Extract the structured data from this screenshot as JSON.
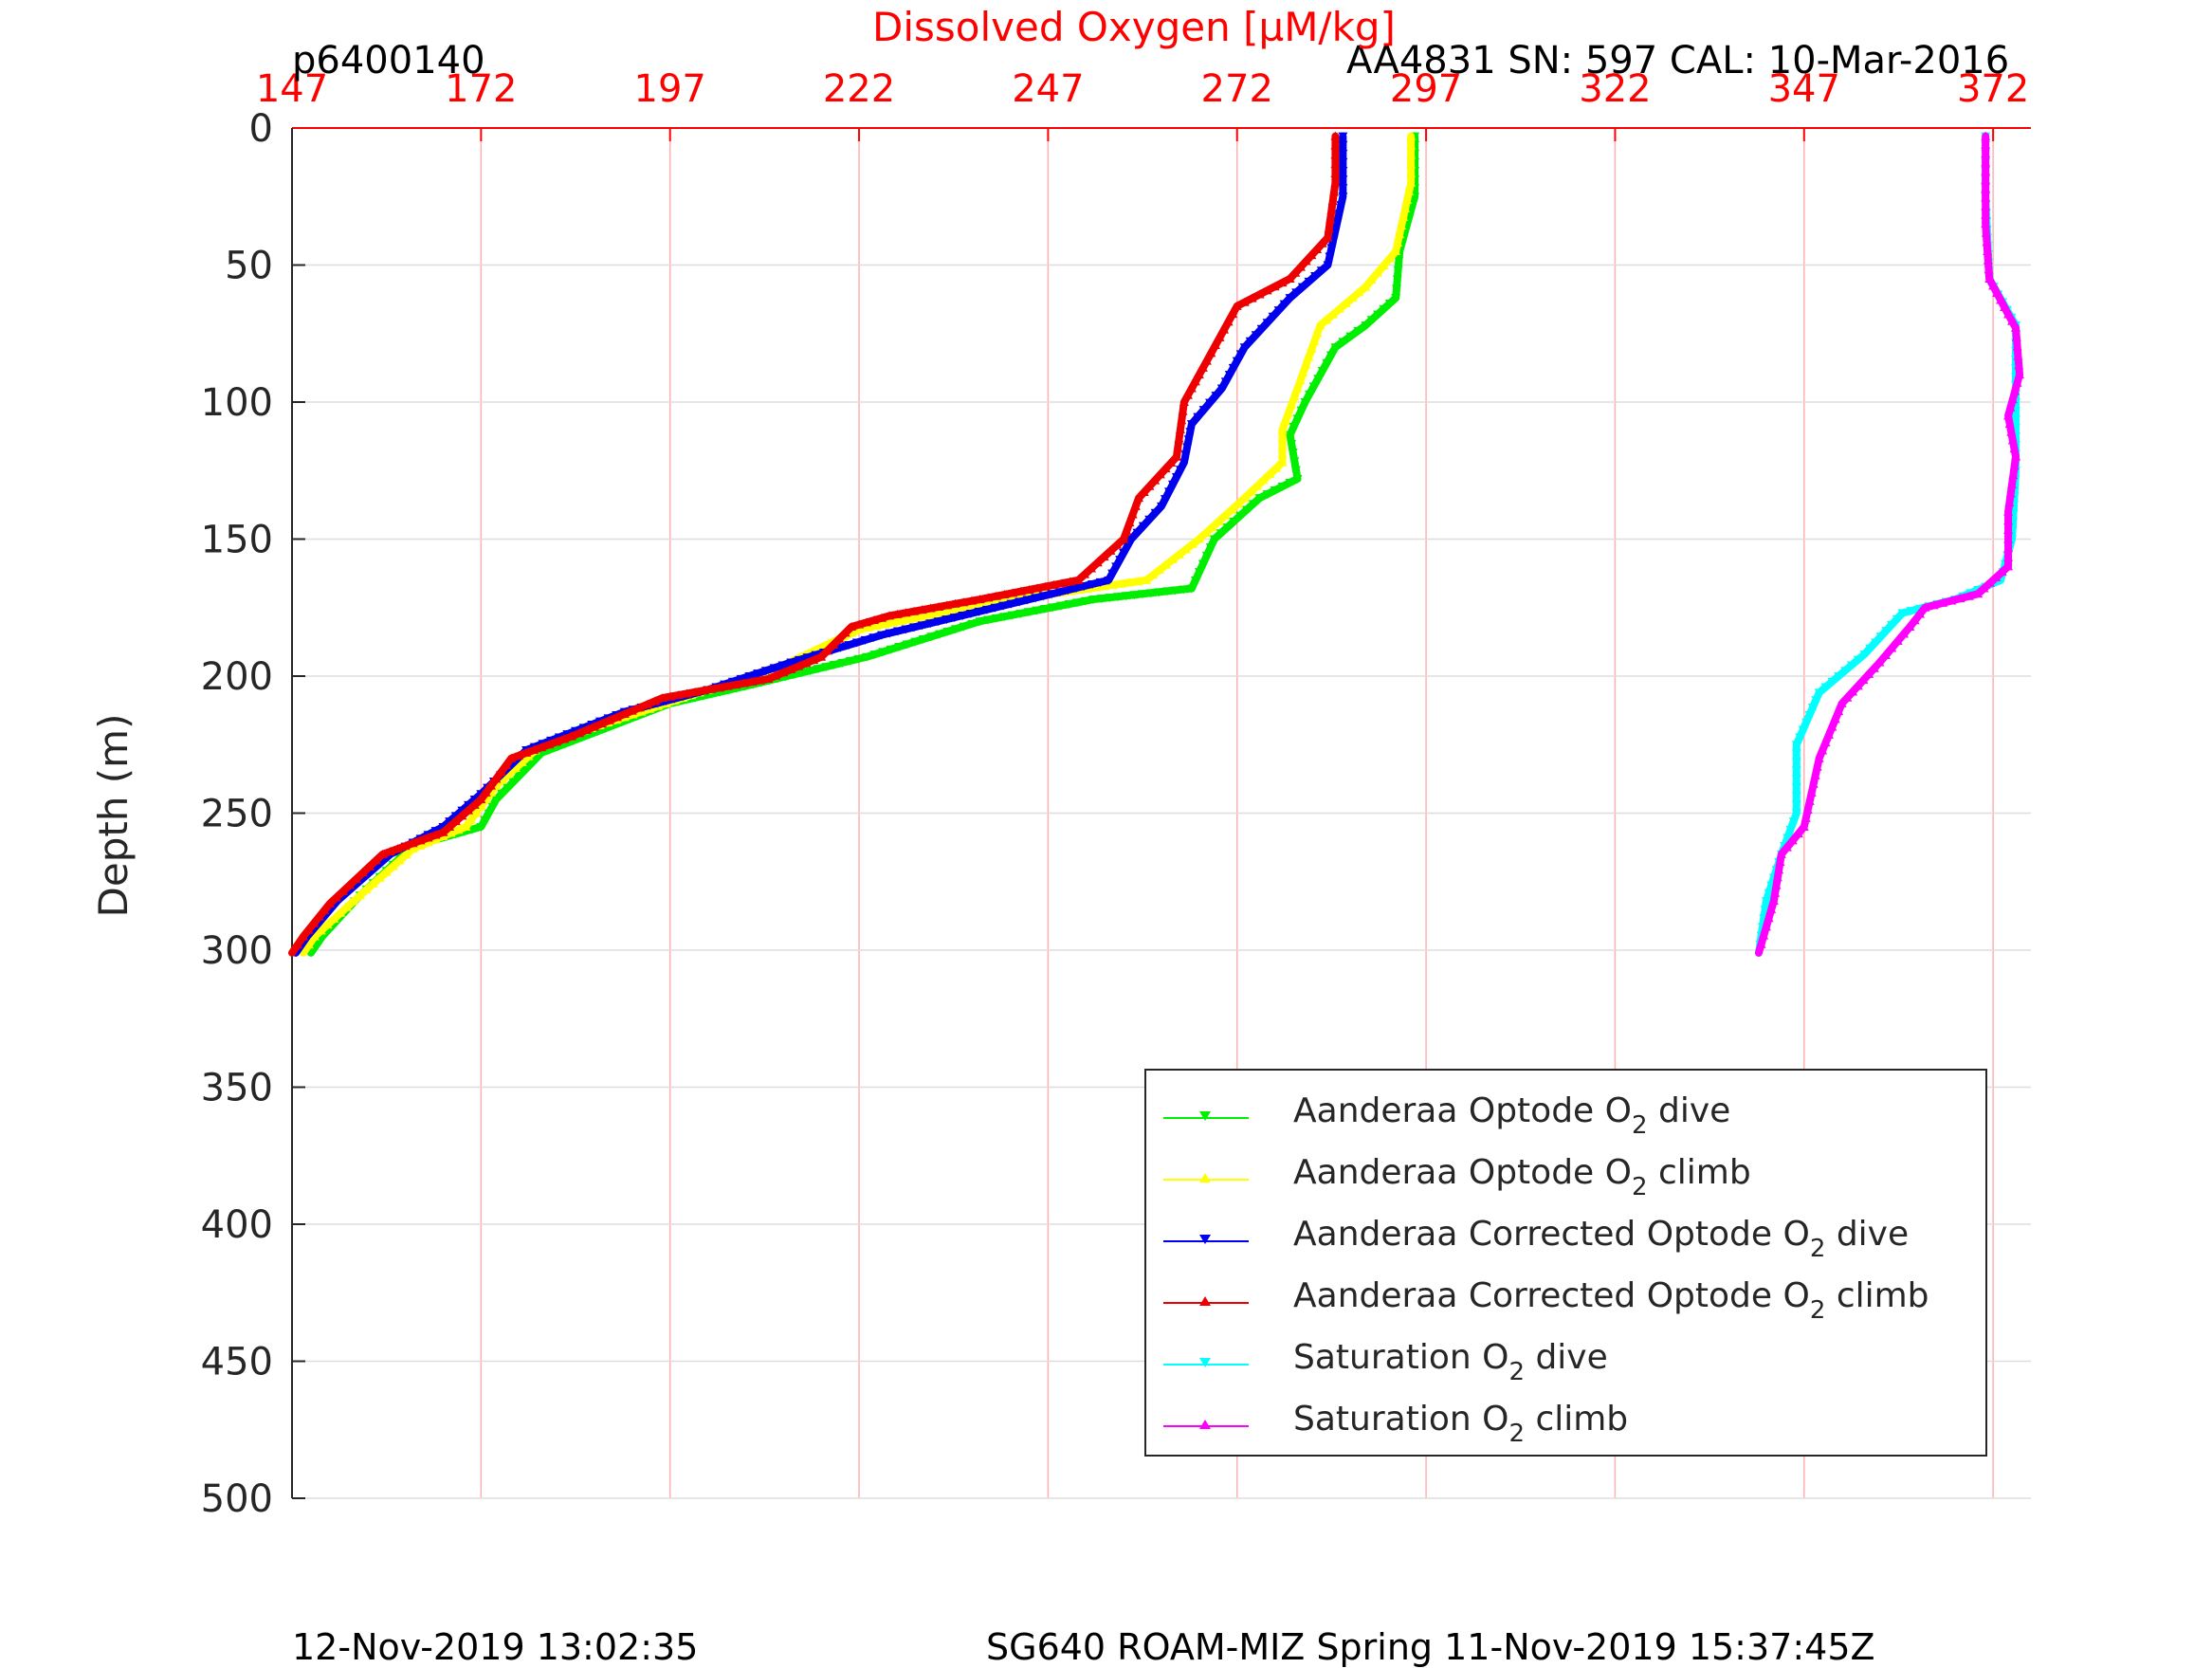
{
  "header": {
    "profile_id": "p6400140",
    "sensor_info": "AA4831   SN: 597   CAL: 10-Mar-2016"
  },
  "footer": {
    "left": "12-Nov-2019 13:02:35",
    "right": "SG640 ROAM-MIZ Spring 11-Nov-2019 15:37:45Z"
  },
  "chart_data": {
    "type": "line",
    "xlabel": "Dissolved Oxygen [µM/kg]",
    "ylabel": "Depth (m)",
    "xlim": [
      147,
      377
    ],
    "ylim": [
      500,
      0
    ],
    "x_ticks": [
      "147",
      "172",
      "197",
      "222",
      "247",
      "272",
      "297",
      "322",
      "347",
      "372"
    ],
    "y_ticks": [
      "0",
      "50",
      "100",
      "150",
      "200",
      "250",
      "300",
      "350",
      "400",
      "450",
      "500"
    ],
    "x_grid": true,
    "y_grid": true,
    "axis_color_x": "#ff0000",
    "legend_position": "bottom-right",
    "series": [
      {
        "name": "Aanderaa Optode O2 dive",
        "color": "#00ee00",
        "marker": "down",
        "points": [
          [
            295.5,
            3
          ],
          [
            295.5,
            25
          ],
          [
            293.5,
            45
          ],
          [
            293,
            62
          ],
          [
            289,
            72
          ],
          [
            285,
            80
          ],
          [
            281,
            100
          ],
          [
            279,
            112
          ],
          [
            280,
            128
          ],
          [
            275,
            135
          ],
          [
            269,
            150
          ],
          [
            266,
            168
          ],
          [
            253,
            172
          ],
          [
            238,
            180
          ],
          [
            223,
            193
          ],
          [
            208,
            203
          ],
          [
            197,
            210
          ],
          [
            180,
            228
          ],
          [
            174,
            245
          ],
          [
            172,
            255
          ],
          [
            163,
            262
          ],
          [
            156,
            280
          ],
          [
            151,
            295
          ],
          [
            149.5,
            301
          ]
        ]
      },
      {
        "name": "Aanderaa Optode O2 climb",
        "color": "#ffff00",
        "marker": "up",
        "points": [
          [
            295,
            3
          ],
          [
            295,
            20
          ],
          [
            293,
            45
          ],
          [
            289,
            58
          ],
          [
            283,
            72
          ],
          [
            280,
            95
          ],
          [
            278,
            110
          ],
          [
            278,
            122
          ],
          [
            273,
            135
          ],
          [
            267,
            150
          ],
          [
            260,
            165
          ],
          [
            240,
            173
          ],
          [
            222,
            183
          ],
          [
            212,
            196
          ],
          [
            202,
            205
          ],
          [
            191,
            215
          ],
          [
            180,
            225
          ],
          [
            174,
            240
          ],
          [
            170,
            255
          ],
          [
            163,
            263
          ],
          [
            156,
            280
          ],
          [
            150,
            295
          ],
          [
            148.5,
            301
          ]
        ]
      },
      {
        "name": "Aanderaa Corrected Optode O2 dive",
        "color": "#0000ee",
        "marker": "down",
        "points": [
          [
            286,
            3
          ],
          [
            286,
            25
          ],
          [
            284,
            50
          ],
          [
            279,
            62
          ],
          [
            273,
            80
          ],
          [
            270,
            95
          ],
          [
            266,
            108
          ],
          [
            265,
            122
          ],
          [
            262,
            138
          ],
          [
            258,
            150
          ],
          [
            255,
            165
          ],
          [
            240,
            175
          ],
          [
            225,
            185
          ],
          [
            213,
            195
          ],
          [
            202,
            205
          ],
          [
            191,
            213
          ],
          [
            178,
            227
          ],
          [
            172,
            243
          ],
          [
            167,
            255
          ],
          [
            160,
            265
          ],
          [
            153,
            282
          ],
          [
            149,
            295
          ],
          [
            147.5,
            301
          ]
        ]
      },
      {
        "name": "Aanderaa Corrected Optode O2 climb",
        "color": "#ee0000",
        "marker": "up",
        "points": [
          [
            285,
            3
          ],
          [
            285,
            20
          ],
          [
            284,
            40
          ],
          [
            279,
            55
          ],
          [
            272,
            65
          ],
          [
            268,
            85
          ],
          [
            265,
            100
          ],
          [
            264,
            120
          ],
          [
            259,
            135
          ],
          [
            257,
            150
          ],
          [
            251,
            165
          ],
          [
            238,
            172
          ],
          [
            226,
            178
          ],
          [
            221,
            182
          ],
          [
            217,
            193
          ],
          [
            210,
            201
          ],
          [
            196,
            208
          ],
          [
            184,
            222
          ],
          [
            176,
            230
          ],
          [
            172,
            245
          ],
          [
            167,
            257
          ],
          [
            159,
            265
          ],
          [
            152,
            283
          ],
          [
            148.5,
            295
          ],
          [
            147,
            301
          ]
        ]
      },
      {
        "name": "Saturation O2 dive",
        "color": "#00ffff",
        "marker": "down",
        "points": [
          [
            371,
            3
          ],
          [
            371,
            25
          ],
          [
            371.5,
            55
          ],
          [
            375,
            72
          ],
          [
            375,
            100
          ],
          [
            375,
            125
          ],
          [
            374.5,
            150
          ],
          [
            373,
            165
          ],
          [
            367,
            172
          ],
          [
            360,
            177
          ],
          [
            355,
            192
          ],
          [
            349,
            206
          ],
          [
            346,
            225
          ],
          [
            346,
            250
          ],
          [
            344,
            265
          ],
          [
            342,
            282
          ],
          [
            341,
            301
          ]
        ]
      },
      {
        "name": "Saturation O2 climb",
        "color": "#ff00ff",
        "marker": "up",
        "points": [
          [
            371,
            3
          ],
          [
            371,
            35
          ],
          [
            371.5,
            55
          ],
          [
            374,
            68
          ],
          [
            375,
            73
          ],
          [
            375.5,
            90
          ],
          [
            374,
            105
          ],
          [
            375,
            120
          ],
          [
            374,
            140
          ],
          [
            374,
            160
          ],
          [
            370,
            170
          ],
          [
            363,
            175
          ],
          [
            361,
            182
          ],
          [
            357,
            195
          ],
          [
            352,
            210
          ],
          [
            349,
            230
          ],
          [
            347,
            255
          ],
          [
            344,
            265
          ],
          [
            343,
            282
          ],
          [
            341,
            301
          ]
        ]
      }
    ]
  }
}
